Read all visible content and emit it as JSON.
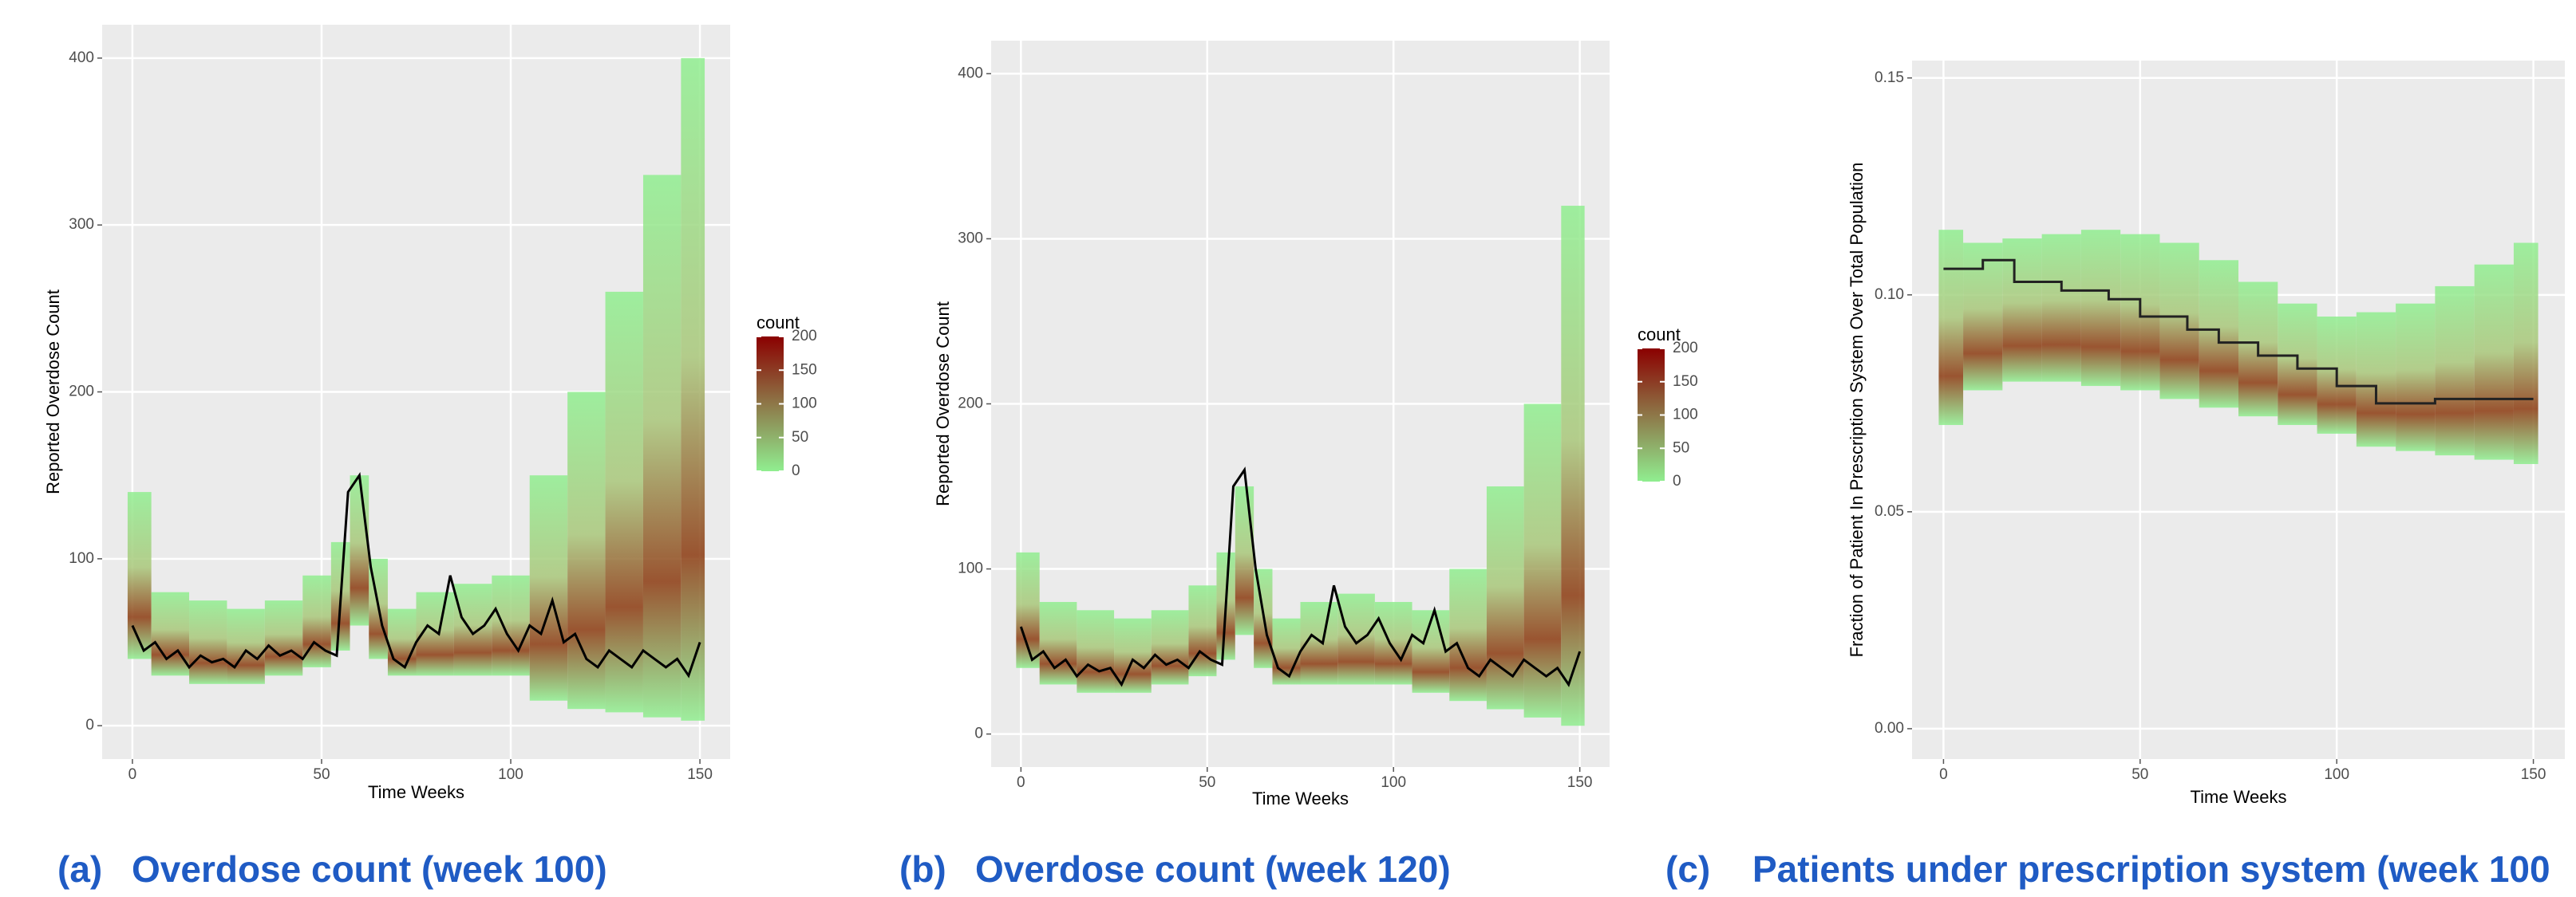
{
  "chart_data": [
    {
      "type": "density",
      "label": "(a)",
      "caption": "Overdose count (week 100)",
      "xlabel": "Time Weeks",
      "ylabel": "Reported Overdose Count",
      "xlim": [
        -8,
        158
      ],
      "xticks": [
        0,
        50,
        100,
        150
      ],
      "ylim": [
        -20,
        420
      ],
      "yticks": [
        0,
        100,
        200,
        300,
        400
      ],
      "grid": true,
      "line_color": "#000000",
      "x": [
        0,
        3,
        6,
        9,
        12,
        15,
        18,
        21,
        24,
        27,
        30,
        33,
        36,
        39,
        42,
        45,
        48,
        51,
        54,
        57,
        60,
        63,
        66,
        69,
        72,
        75,
        78,
        81,
        84,
        87,
        90,
        93,
        96,
        99,
        102,
        105,
        108,
        111,
        114,
        117,
        120,
        123,
        126,
        129,
        132,
        135,
        138,
        141,
        144,
        147,
        150
      ],
      "values": [
        60,
        45,
        50,
        40,
        45,
        35,
        42,
        38,
        40,
        35,
        45,
        40,
        48,
        42,
        45,
        40,
        50,
        45,
        42,
        140,
        150,
        95,
        60,
        40,
        35,
        50,
        60,
        55,
        90,
        65,
        55,
        60,
        70,
        55,
        45,
        60,
        55,
        75,
        50,
        55,
        40,
        35,
        45,
        40,
        35,
        45,
        40,
        35,
        40,
        30,
        50
      ],
      "band_x": [
        0,
        10,
        20,
        30,
        40,
        50,
        55,
        60,
        65,
        70,
        80,
        90,
        100,
        110,
        120,
        130,
        140,
        150
      ],
      "band_low": [
        40,
        30,
        25,
        25,
        30,
        35,
        45,
        60,
        40,
        30,
        30,
        30,
        30,
        15,
        10,
        8,
        5,
        3
      ],
      "band_high": [
        140,
        80,
        75,
        70,
        75,
        90,
        110,
        150,
        100,
        70,
        80,
        85,
        90,
        150,
        200,
        260,
        330,
        400
      ],
      "colorbar": {
        "title": "count",
        "lim": [
          0,
          200
        ],
        "ticks": [
          0,
          50,
          100,
          150,
          200
        ],
        "colors": [
          "#90ee90",
          "#8b0000"
        ]
      }
    },
    {
      "type": "density",
      "label": "(b)",
      "caption": "Overdose count (week 120)",
      "xlabel": "Time Weeks",
      "ylabel": "Reported Overdose Count",
      "xlim": [
        -8,
        158
      ],
      "xticks": [
        0,
        50,
        100,
        150
      ],
      "ylim": [
        -20,
        420
      ],
      "yticks": [
        0,
        100,
        200,
        300,
        400
      ],
      "grid": true,
      "line_color": "#000000",
      "x": [
        0,
        3,
        6,
        9,
        12,
        15,
        18,
        21,
        24,
        27,
        30,
        33,
        36,
        39,
        42,
        45,
        48,
        51,
        54,
        57,
        60,
        63,
        66,
        69,
        72,
        75,
        78,
        81,
        84,
        87,
        90,
        93,
        96,
        99,
        102,
        105,
        108,
        111,
        114,
        117,
        120,
        123,
        126,
        129,
        132,
        135,
        138,
        141,
        144,
        147,
        150
      ],
      "values": [
        65,
        45,
        50,
        40,
        45,
        35,
        42,
        38,
        40,
        30,
        45,
        40,
        48,
        42,
        45,
        40,
        50,
        45,
        42,
        150,
        160,
        100,
        60,
        40,
        35,
        50,
        60,
        55,
        90,
        65,
        55,
        60,
        70,
        55,
        45,
        60,
        55,
        75,
        50,
        55,
        40,
        35,
        45,
        40,
        35,
        45,
        40,
        35,
        40,
        30,
        50
      ],
      "band_x": [
        0,
        10,
        20,
        30,
        40,
        50,
        55,
        60,
        65,
        70,
        80,
        90,
        100,
        110,
        120,
        130,
        140,
        150
      ],
      "band_low": [
        40,
        30,
        25,
        25,
        30,
        35,
        45,
        60,
        40,
        30,
        30,
        30,
        30,
        25,
        20,
        15,
        10,
        5
      ],
      "band_high": [
        110,
        80,
        75,
        70,
        75,
        90,
        110,
        150,
        100,
        70,
        80,
        85,
        80,
        75,
        100,
        150,
        200,
        320
      ],
      "colorbar": {
        "title": "count",
        "lim": [
          0,
          200
        ],
        "ticks": [
          0,
          50,
          100,
          150,
          200
        ],
        "colors": [
          "#90ee90",
          "#8b0000"
        ]
      }
    },
    {
      "type": "density",
      "label": "(c)",
      "caption": "Patients under prescription system (week 100",
      "xlabel": "Time Weeks",
      "ylabel": "Fraction of Patient In Prescription System Over Total Population",
      "xlim": [
        -8,
        158
      ],
      "xticks": [
        0,
        50,
        100,
        150
      ],
      "ylim": [
        -0.007,
        0.154
      ],
      "yticks": [
        {
          "value": 0,
          "label": "0.00"
        },
        0.05,
        {
          "value": 0.1,
          "label": "0.10"
        },
        0.15
      ],
      "grid": true,
      "line_color": "#222222",
      "step": true,
      "x": [
        0,
        10,
        18,
        30,
        42,
        50,
        62,
        70,
        80,
        90,
        100,
        110,
        125,
        150
      ],
      "values": [
        0.106,
        0.108,
        0.103,
        0.101,
        0.099,
        0.095,
        0.092,
        0.089,
        0.086,
        0.083,
        0.079,
        0.075,
        0.076,
        0.076
      ],
      "band_x": [
        0,
        10,
        20,
        30,
        40,
        50,
        60,
        70,
        80,
        90,
        100,
        110,
        120,
        130,
        140,
        150
      ],
      "band_low": [
        0.07,
        0.078,
        0.08,
        0.08,
        0.079,
        0.078,
        0.076,
        0.074,
        0.072,
        0.07,
        0.068,
        0.065,
        0.064,
        0.063,
        0.062,
        0.061
      ],
      "band_high": [
        0.115,
        0.112,
        0.113,
        0.114,
        0.115,
        0.114,
        0.112,
        0.108,
        0.103,
        0.098,
        0.095,
        0.096,
        0.098,
        0.102,
        0.107,
        0.112
      ]
    }
  ]
}
